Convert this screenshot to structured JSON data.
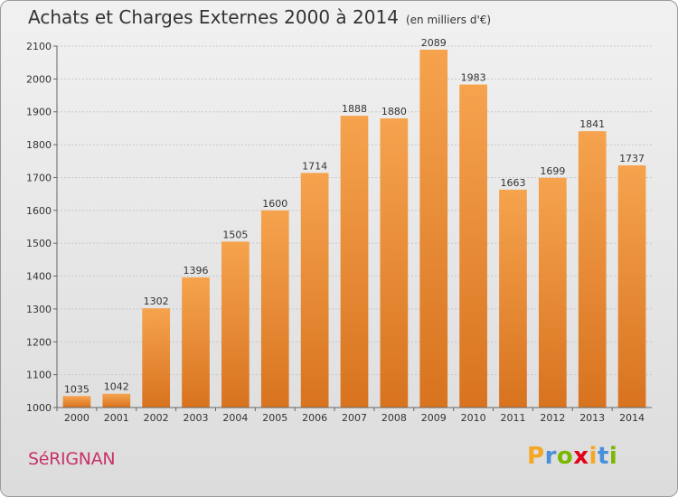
{
  "title": "Achats et Charges Externes 2000 à 2014",
  "title_unit": "(en milliers d'€)",
  "town": "SéRIGNAN",
  "logo": {
    "text": "Proxiti",
    "letters": [
      {
        "ch": "P",
        "color": "#f5a623"
      },
      {
        "ch": "r",
        "color": "#4a90d9"
      },
      {
        "ch": "o",
        "color": "#7ab800"
      },
      {
        "ch": "x",
        "color": "#e2001a"
      },
      {
        "ch": "i",
        "color": "#f5a623"
      },
      {
        "ch": "t",
        "color": "#4a90d9"
      },
      {
        "ch": "i",
        "color": "#7ab800"
      }
    ]
  },
  "chart_data": {
    "type": "bar",
    "title": "Achats et Charges Externes 2000 à 2014",
    "subtitle": "(en milliers d'€)",
    "categories": [
      "2000",
      "2001",
      "2002",
      "2003",
      "2004",
      "2005",
      "2006",
      "2007",
      "2008",
      "2009",
      "2010",
      "2011",
      "2012",
      "2013",
      "2014"
    ],
    "values": [
      1035,
      1042,
      1302,
      1396,
      1505,
      1600,
      1714,
      1888,
      1880,
      2089,
      1983,
      1663,
      1699,
      1841,
      1737
    ],
    "ylim": [
      1000,
      2100
    ],
    "yticks": [
      1000,
      1100,
      1200,
      1300,
      1400,
      1500,
      1600,
      1700,
      1800,
      1900,
      2000,
      2100
    ],
    "grid": true,
    "bar_color_top": "#f6a34e",
    "bar_color_bottom": "#d8731f",
    "xlabel": "",
    "ylabel": ""
  }
}
